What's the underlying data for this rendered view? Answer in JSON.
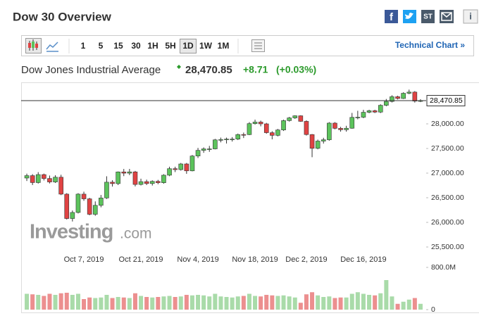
{
  "header": {
    "title": "Dow 30 Overview",
    "icons": {
      "facebook": "f",
      "stocktwits": "ST",
      "info": "i"
    }
  },
  "toolbar": {
    "intervals": [
      "1",
      "5",
      "15",
      "30",
      "1H",
      "5H",
      "1D",
      "1W",
      "1M"
    ],
    "active": "1D",
    "technical_link": "Technical Chart »"
  },
  "quote": {
    "name": "Dow Jones Industrial Average",
    "price": "28,470.85",
    "change": "+8.71",
    "change_percent": "(+0.03%)"
  },
  "watermark": {
    "brand": "Investing",
    "suffix": ".com"
  },
  "chart_data": {
    "type": "candlestick",
    "categories": [
      null,
      null,
      null,
      null,
      null,
      null,
      null,
      null,
      null,
      null,
      "Oct 7, 2019",
      null,
      null,
      null,
      null,
      null,
      null,
      null,
      null,
      null,
      "Oct 21, 2019",
      null,
      null,
      null,
      null,
      null,
      null,
      null,
      null,
      null,
      "Nov 4, 2019",
      null,
      null,
      null,
      null,
      null,
      null,
      null,
      null,
      null,
      "Nov 18, 2019",
      null,
      null,
      null,
      null,
      null,
      null,
      null,
      null,
      "Dec 2, 2019",
      null,
      null,
      null,
      null,
      null,
      null,
      null,
      null,
      null,
      "Dec 16, 2019",
      null,
      null,
      null,
      null,
      null,
      null,
      null,
      null,
      null,
      null
    ],
    "open": [
      26900,
      26949,
      26808,
      26970,
      26891,
      26820,
      26917,
      26573,
      26078,
      26201,
      26573,
      26478,
      26164,
      26346,
      26496,
      26816,
      26787,
      27024,
      26999,
      27025,
      26770,
      26827,
      26788,
      26833,
      26805,
      26958,
      27090,
      27071,
      27186,
      27046,
      27347,
      27462,
      27492,
      27492,
      27675,
      27681,
      27691,
      27691,
      27783,
      27782,
      28005,
      28036,
      28000,
      27821,
      27766,
      27876,
      28066,
      28121,
      28164,
      28051,
      27783,
      27503,
      27650,
      27677,
      28015,
      27909,
      27881,
      27911,
      28132,
      28135,
      28235,
      28267,
      28239,
      28377,
      28455,
      28551,
      28515,
      28621,
      28645,
      28462
    ],
    "high": [
      26989,
      26979,
      27020,
      26990,
      26951,
      26957,
      26967,
      26593,
      26241,
      26593,
      26623,
      26498,
      26426,
      26556,
      26936,
      26856,
      27034,
      27084,
      27085,
      27045,
      26887,
      26867,
      26853,
      26863,
      26978,
      27130,
      27130,
      27206,
      27206,
      27367,
      27512,
      27522,
      27552,
      27695,
      27721,
      27721,
      27731,
      27803,
      27823,
      28035,
      28086,
      28066,
      28020,
      27851,
      27896,
      28086,
      28141,
      28174,
      28174,
      28071,
      27793,
      27680,
      27717,
      28035,
      28035,
      27939,
      27961,
      28222,
      28265,
      28285,
      28287,
      28287,
      28397,
      28505,
      28581,
      28571,
      28641,
      28695,
      28665,
      28500
    ],
    "low": [
      26840,
      26758,
      26788,
      26851,
      26790,
      26800,
      26553,
      26058,
      26018,
      26181,
      26438,
      26144,
      26134,
      26306,
      26476,
      26727,
      26757,
      26939,
      26959,
      26730,
      26750,
      26758,
      26748,
      26775,
      26785,
      26938,
      27021,
      27051,
      26986,
      27036,
      27307,
      27412,
      27432,
      27482,
      27625,
      27601,
      27641,
      27671,
      27712,
      27772,
      27985,
      27950,
      27801,
      27686,
      27746,
      27856,
      28046,
      28101,
      28041,
      27763,
      27323,
      27483,
      27600,
      27657,
      27889,
      27841,
      27841,
      27901,
      28092,
      28115,
      28215,
      28219,
      28219,
      28357,
      28435,
      28495,
      28505,
      28601,
      28432,
      28442
    ],
    "close": [
      26949,
      26808,
      26970,
      26891,
      26820,
      26917,
      26573,
      26078,
      26201,
      26573,
      26478,
      26164,
      26346,
      26496,
      26816,
      26787,
      27024,
      26999,
      27025,
      26770,
      26827,
      26788,
      26833,
      26805,
      26958,
      27090,
      27071,
      27186,
      27046,
      27347,
      27462,
      27492,
      27492,
      27675,
      27681,
      27691,
      27691,
      27783,
      27782,
      28005,
      28036,
      28000,
      27821,
      27766,
      27876,
      28066,
      28121,
      28164,
      28051,
      27783,
      27503,
      27650,
      27677,
      28015,
      27909,
      27881,
      27911,
      28132,
      28135,
      28235,
      28267,
      28239,
      28377,
      28455,
      28551,
      28515,
      28621,
      28645,
      28462,
      28470.85
    ],
    "volume": [
      300,
      290,
      280,
      260,
      300,
      280,
      310,
      320,
      280,
      300,
      200,
      230,
      220,
      230,
      280,
      220,
      240,
      230,
      220,
      310,
      260,
      240,
      230,
      240,
      250,
      260,
      240,
      250,
      280,
      270,
      280,
      270,
      250,
      300,
      250,
      240,
      230,
      250,
      260,
      300,
      260,
      250,
      280,
      270,
      260,
      270,
      250,
      230,
      130,
      290,
      330,
      270,
      240,
      250,
      220,
      230,
      230,
      300,
      330,
      300,
      280,
      270,
      310,
      560,
      250,
      110,
      150,
      190,
      220,
      110
    ],
    "up_color": "#5cc35c",
    "down_color": "#e04343",
    "volume_up_color": "#a9dba9",
    "volume_down_color": "#ec8f8f",
    "ylim": [
      25300,
      28843
    ],
    "yticks": [
      {
        "value": 25500,
        "label": "25,500.00"
      },
      {
        "value": 26000,
        "label": "26,000.00"
      },
      {
        "value": 26500,
        "label": "26,500.00"
      },
      {
        "value": 27000,
        "label": "27,000.00"
      },
      {
        "value": 27500,
        "label": "27,500.00"
      },
      {
        "value": 28000,
        "label": "28,000.00"
      }
    ],
    "y2lim": [
      0,
      800
    ],
    "y2ticks": [
      0,
      {
        "value": 800,
        "label": "800.0M"
      }
    ],
    "price_line": {
      "value": 28470.85,
      "label": "28,470.85"
    }
  }
}
